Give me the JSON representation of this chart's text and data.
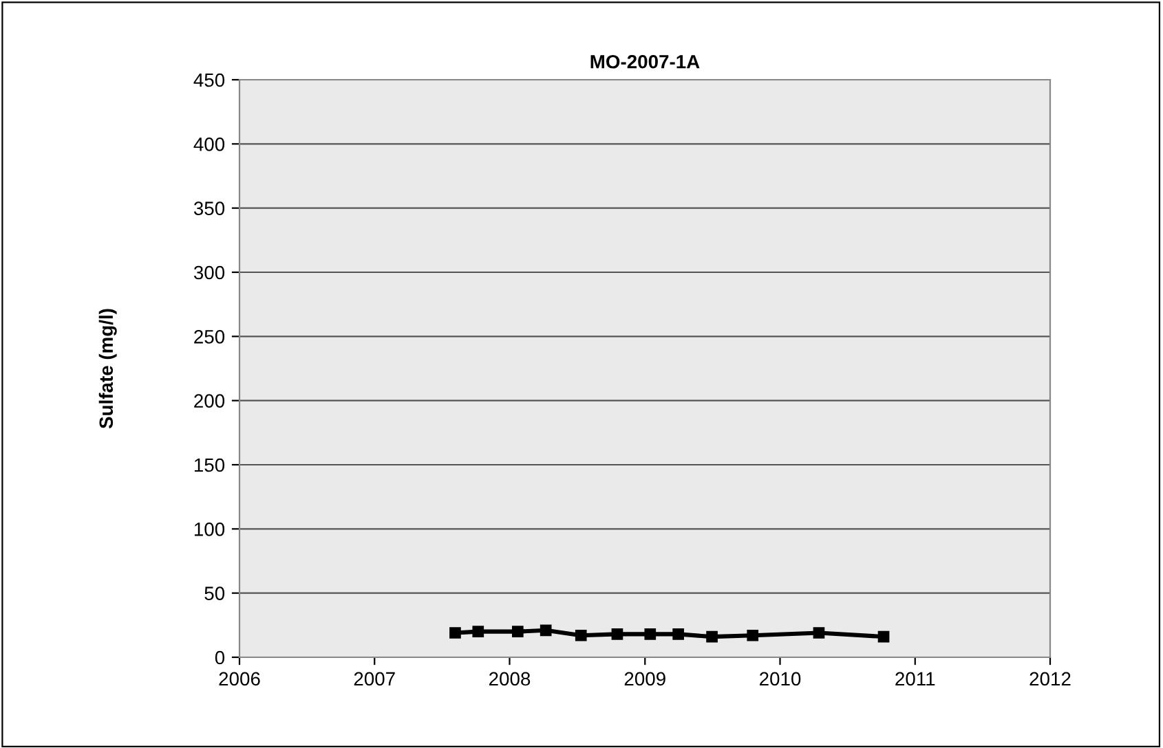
{
  "chart_data": {
    "type": "line",
    "title": "MO-2007-1A",
    "ylabel": "Sulfate (mg/l)",
    "x": [
      "2007-08-07",
      "2007-10-08",
      "2008-01-23",
      "2008-04-08",
      "2008-07-12",
      "2008-10-18",
      "2009-01-15",
      "2009-04-01",
      "2009-07-01",
      "2009-10-19",
      "2010-04-16",
      "2010-10-08"
    ],
    "series": [
      {
        "color": "#000000",
        "values": [
          19,
          20,
          20,
          21,
          17,
          18,
          18,
          18,
          16,
          17,
          19,
          16
        ]
      }
    ],
    "xlim": [
      "2006",
      "2012"
    ],
    "xticks": [
      "2006",
      "2007",
      "2008",
      "2009",
      "2010",
      "2011",
      "2012"
    ],
    "ylim": [
      0,
      450
    ],
    "yticks": [
      0,
      50,
      100,
      150,
      200,
      250,
      300,
      350,
      400,
      450
    ],
    "grid": "y",
    "marker": "square",
    "line_style": "solid",
    "legend": false
  }
}
